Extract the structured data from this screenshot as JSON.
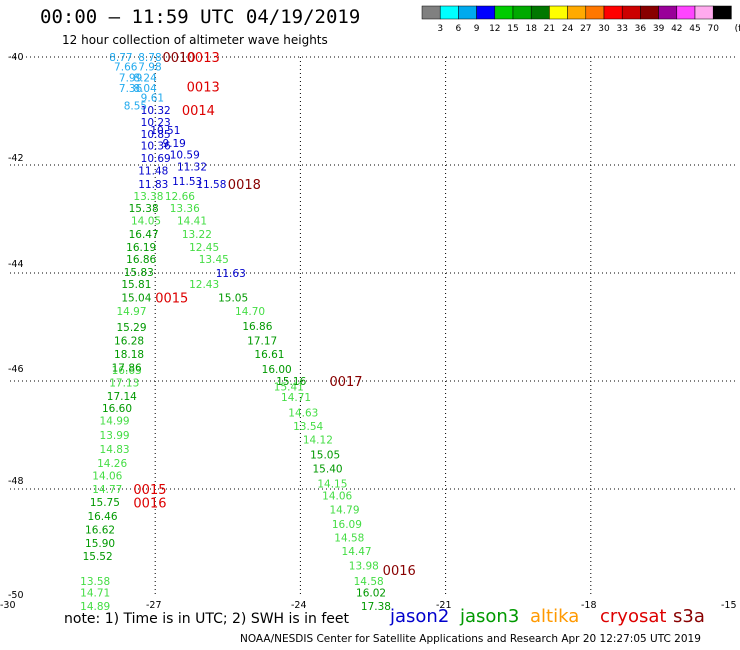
{
  "header": {
    "title": "00:00 – 11:59 UTC 04/19/2019",
    "subtitle": "12 hour collection of altimeter wave heights"
  },
  "legend": {
    "labels": [
      "3",
      "6",
      "9",
      "12",
      "15",
      "18",
      "21",
      "24",
      "27",
      "30",
      "33",
      "36",
      "39",
      "42",
      "45",
      "70"
    ],
    "unit": "(ft)",
    "colors": [
      "#808080",
      "#00ffff",
      "#00aaee",
      "#0000ff",
      "#00cc00",
      "#00aa00",
      "#007700",
      "#ffff00",
      "#ffaa00",
      "#ff7700",
      "#ff0000",
      "#cc0000",
      "#880000",
      "#990099",
      "#ff44ff",
      "#ffaaee",
      "#000000"
    ]
  },
  "axes": {
    "lon_labels": [
      "-30",
      "-27",
      "-24",
      "-21",
      "-18",
      "-15"
    ],
    "lat_labels": [
      "-40",
      "-42",
      "-44",
      "-46",
      "-48",
      "-50"
    ]
  },
  "footer": {
    "note": "note: 1) Time is in UTC; 2) SWH is in feet",
    "satellites": [
      {
        "name": "jason2",
        "color": "#0000cc"
      },
      {
        "name": "jason3",
        "color": "#009900"
      },
      {
        "name": "altika",
        "color": "#ff9900"
      },
      {
        "name": "cryosat",
        "color": "#dd0000"
      },
      {
        "name": "s3a",
        "color": "#880000"
      }
    ],
    "credit": "NOAA/NESDIS Center for Satellite Applications and Research    Apr 20 12:27:05 UTC 2019"
  },
  "chart_data": {
    "type": "scatter",
    "x_range": [
      -30,
      -15
    ],
    "y_range": [
      -50,
      -40
    ],
    "track_times": [
      {
        "text": "0010",
        "lon": -26.85,
        "lat": -40.0,
        "color": "#880000"
      },
      {
        "text": "0013",
        "lon": -26.35,
        "lat": -40.0,
        "color": "#dd0000"
      },
      {
        "text": "0013",
        "lon": -26.35,
        "lat": -40.55,
        "color": "#dd0000"
      },
      {
        "text": "0014",
        "lon": -26.45,
        "lat": -40.98,
        "color": "#dd0000"
      },
      {
        "text": "0018",
        "lon": -25.5,
        "lat": -42.35,
        "color": "#880000"
      },
      {
        "text": "0015",
        "lon": -27.0,
        "lat": -44.45,
        "color": "#dd0000"
      },
      {
        "text": "0017",
        "lon": -23.4,
        "lat": -46.0,
        "color": "#880000"
      },
      {
        "text": "0015",
        "lon": -27.45,
        "lat": -48.0,
        "color": "#dd0000"
      },
      {
        "text": "0016",
        "lon": -27.45,
        "lat": -48.25,
        "color": "#dd0000"
      },
      {
        "text": "0016",
        "lon": -22.3,
        "lat": -49.5,
        "color": "#880000"
      }
    ],
    "series": [
      {
        "name": "track_a",
        "color": "#22aaee",
        "points": [
          {
            "lon": -27.95,
            "lat": -40.0,
            "v": "8.77"
          },
          {
            "lon": -27.35,
            "lat": -40.0,
            "v": "8.78"
          },
          {
            "lon": -27.85,
            "lat": -40.18,
            "v": "7.66"
          },
          {
            "lon": -27.35,
            "lat": -40.18,
            "v": "7.98"
          },
          {
            "lon": -27.75,
            "lat": -40.38,
            "v": "7.99"
          },
          {
            "lon": -27.45,
            "lat": -40.38,
            "v": "8.24"
          },
          {
            "lon": -27.75,
            "lat": -40.57,
            "v": "7.36"
          },
          {
            "lon": -27.45,
            "lat": -40.57,
            "v": "8.04"
          },
          {
            "lon": -27.3,
            "lat": -40.75,
            "v": "9.61"
          },
          {
            "lon": -27.65,
            "lat": -40.9,
            "v": "8.55"
          }
        ]
      },
      {
        "name": "track_b",
        "color": "#0000cc",
        "points": [
          {
            "lon": -27.3,
            "lat": -40.98,
            "v": "10.32"
          },
          {
            "lon": -27.3,
            "lat": -41.2,
            "v": "10.23"
          },
          {
            "lon": -27.1,
            "lat": -41.35,
            "v": "10.51"
          },
          {
            "lon": -27.3,
            "lat": -41.43,
            "v": "10.85"
          },
          {
            "lon": -26.85,
            "lat": -41.59,
            "v": "9.19"
          },
          {
            "lon": -27.3,
            "lat": -41.64,
            "v": "10.36"
          },
          {
            "lon": -26.7,
            "lat": -41.81,
            "v": "10.59"
          },
          {
            "lon": -27.3,
            "lat": -41.87,
            "v": "10.69"
          },
          {
            "lon": -26.55,
            "lat": -42.03,
            "v": "11.32"
          },
          {
            "lon": -27.35,
            "lat": -42.1,
            "v": "11.48"
          },
          {
            "lon": -26.65,
            "lat": -42.3,
            "v": "11.53"
          },
          {
            "lon": -27.35,
            "lat": -42.35,
            "v": "11.83"
          },
          {
            "lon": -26.15,
            "lat": -42.35,
            "v": "11.58"
          },
          {
            "lon": -25.75,
            "lat": -44.0,
            "v": "11.63"
          }
        ]
      },
      {
        "name": "track_c",
        "color": "#44dd44",
        "points": [
          {
            "lon": -27.45,
            "lat": -42.57,
            "v": "13.38"
          },
          {
            "lon": -26.8,
            "lat": -42.57,
            "v": "12.66"
          },
          {
            "lon": -26.7,
            "lat": -42.8,
            "v": "13.36"
          },
          {
            "lon": -26.55,
            "lat": -43.03,
            "v": "14.41"
          },
          {
            "lon": -26.45,
            "lat": -43.28,
            "v": "13.22"
          },
          {
            "lon": -26.3,
            "lat": -43.52,
            "v": "12.45"
          },
          {
            "lon": -26.1,
            "lat": -43.74,
            "v": "13.45"
          },
          {
            "lon": -27.5,
            "lat": -43.03,
            "v": "14.05"
          },
          {
            "lon": -26.3,
            "lat": -44.2,
            "v": "12.43"
          },
          {
            "lon": -25.35,
            "lat": -44.7,
            "v": "14.70"
          },
          {
            "lon": -27.8,
            "lat": -44.7,
            "v": "14.97"
          },
          {
            "lon": -27.9,
            "lat": -45.8,
            "v": "16.63"
          },
          {
            "lon": -27.95,
            "lat": -46.03,
            "v": "17.13"
          },
          {
            "lon": -24.55,
            "lat": -46.1,
            "v": "15.41"
          },
          {
            "lon": -24.4,
            "lat": -46.3,
            "v": "14.71"
          },
          {
            "lon": -24.25,
            "lat": -46.58,
            "v": "14.63"
          },
          {
            "lon": -24.15,
            "lat": -46.83,
            "v": "13.54"
          },
          {
            "lon": -28.15,
            "lat": -46.73,
            "v": "14.99"
          },
          {
            "lon": -28.15,
            "lat": -47.0,
            "v": "13.99"
          },
          {
            "lon": -28.15,
            "lat": -47.26,
            "v": "14.83"
          },
          {
            "lon": -23.95,
            "lat": -47.08,
            "v": "14.12"
          },
          {
            "lon": -28.2,
            "lat": -47.52,
            "v": "14.26"
          },
          {
            "lon": -28.3,
            "lat": -47.75,
            "v": "14.06"
          },
          {
            "lon": -23.65,
            "lat": -47.9,
            "v": "14.15"
          },
          {
            "lon": -23.55,
            "lat": -48.12,
            "v": "14.06"
          },
          {
            "lon": -28.3,
            "lat": -48.0,
            "v": "14.77"
          },
          {
            "lon": -23.4,
            "lat": -48.38,
            "v": "14.79"
          },
          {
            "lon": -23.35,
            "lat": -48.65,
            "v": "16.09"
          },
          {
            "lon": -23.3,
            "lat": -48.9,
            "v": "14.58"
          },
          {
            "lon": -23.15,
            "lat": -49.15,
            "v": "14.47"
          },
          {
            "lon": -23.0,
            "lat": -49.42,
            "v": "13.98"
          },
          {
            "lon": -22.9,
            "lat": -49.7,
            "v": "14.58"
          },
          {
            "lon": -28.55,
            "lat": -49.7,
            "v": "13.58"
          },
          {
            "lon": -28.55,
            "lat": -49.92,
            "v": "14.71"
          },
          {
            "lon": -28.55,
            "lat": -50.17,
            "v": "14.89"
          }
        ]
      },
      {
        "name": "track_d",
        "color": "#009900",
        "points": [
          {
            "lon": -27.55,
            "lat": -42.8,
            "v": "15.38"
          },
          {
            "lon": -27.55,
            "lat": -43.28,
            "v": "16.47"
          },
          {
            "lon": -27.6,
            "lat": -43.52,
            "v": "16.19"
          },
          {
            "lon": -27.6,
            "lat": -43.74,
            "v": "16.86"
          },
          {
            "lon": -27.65,
            "lat": -43.98,
            "v": "15.83"
          },
          {
            "lon": -27.7,
            "lat": -44.2,
            "v": "15.81"
          },
          {
            "lon": -27.7,
            "lat": -44.45,
            "v": "15.04"
          },
          {
            "lon": -25.7,
            "lat": -44.45,
            "v": "15.05"
          },
          {
            "lon": -25.2,
            "lat": -44.98,
            "v": "16.86"
          },
          {
            "lon": -25.1,
            "lat": -45.25,
            "v": "17.17"
          },
          {
            "lon": -24.95,
            "lat": -45.5,
            "v": "16.61"
          },
          {
            "lon": -24.8,
            "lat": -45.78,
            "v": "16.00"
          },
          {
            "lon": -24.5,
            "lat": -46.0,
            "v": "15.16"
          },
          {
            "lon": -27.8,
            "lat": -45.0,
            "v": "15.29"
          },
          {
            "lon": -27.85,
            "lat": -45.25,
            "v": "16.28"
          },
          {
            "lon": -27.85,
            "lat": -45.5,
            "v": "18.18"
          },
          {
            "lon": -27.9,
            "lat": -45.75,
            "v": "17.86"
          },
          {
            "lon": -28.0,
            "lat": -46.28,
            "v": "17.14"
          },
          {
            "lon": -28.1,
            "lat": -46.5,
            "v": "16.60"
          },
          {
            "lon": -23.8,
            "lat": -47.36,
            "v": "15.05"
          },
          {
            "lon": -23.75,
            "lat": -47.62,
            "v": "15.40"
          },
          {
            "lon": -28.35,
            "lat": -48.24,
            "v": "15.75"
          },
          {
            "lon": -28.4,
            "lat": -48.5,
            "v": "16.46"
          },
          {
            "lon": -28.45,
            "lat": -48.75,
            "v": "16.62"
          },
          {
            "lon": -28.45,
            "lat": -49.0,
            "v": "15.90"
          },
          {
            "lon": -28.5,
            "lat": -49.24,
            "v": "15.52"
          },
          {
            "lon": -22.85,
            "lat": -49.92,
            "v": "16.02"
          },
          {
            "lon": -22.75,
            "lat": -50.17,
            "v": "17.38"
          }
        ]
      }
    ]
  }
}
